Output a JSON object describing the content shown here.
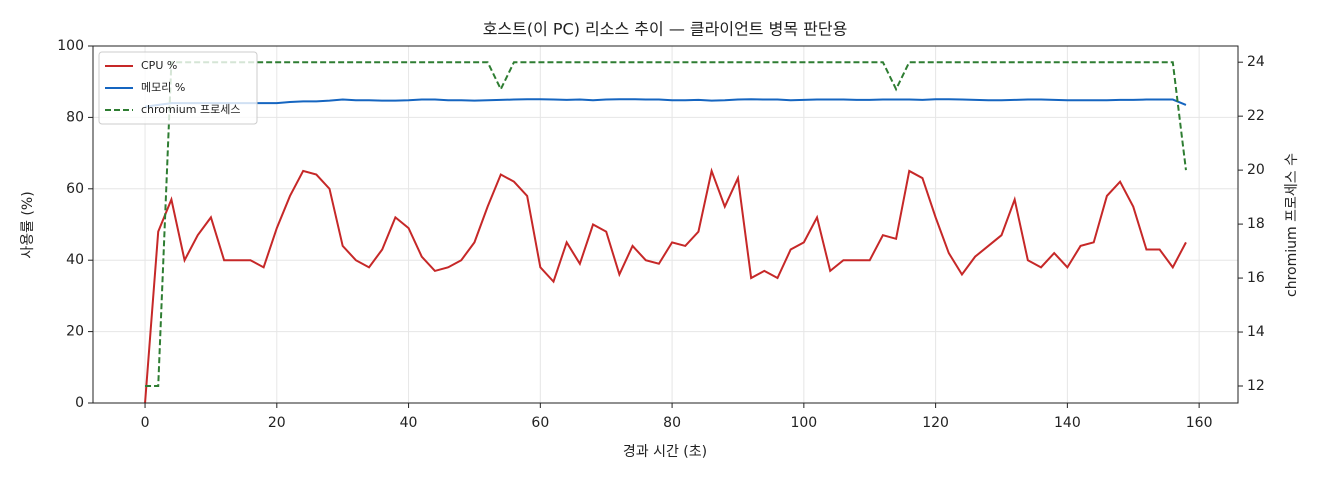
{
  "chart_data": {
    "type": "line",
    "title": "호스트(이 PC) 리소스 추이 — 클라이언트 병목 판단용",
    "x_label": "경과 시간 (초)",
    "y_label": "사용률 (%)",
    "y2_label": "chromium 프로세스 수",
    "x": [
      0,
      2,
      4,
      6,
      8,
      10,
      12,
      14,
      16,
      18,
      20,
      22,
      24,
      26,
      28,
      30,
      32,
      34,
      36,
      38,
      40,
      42,
      44,
      46,
      48,
      50,
      52,
      54,
      56,
      58,
      60,
      62,
      64,
      66,
      68,
      70,
      72,
      74,
      76,
      78,
      80,
      82,
      84,
      86,
      88,
      90,
      92,
      94,
      96,
      98,
      100,
      102,
      104,
      106,
      108,
      110,
      112,
      114,
      116,
      118,
      120,
      122,
      124,
      126,
      128,
      130,
      132,
      134,
      136,
      138,
      140,
      142,
      144,
      146,
      148,
      150,
      152,
      154,
      156,
      158
    ],
    "series": [
      {
        "name": "CPU %",
        "color": "#c62828",
        "style": "solid",
        "axis": "y",
        "values": [
          0,
          48,
          57,
          40,
          47,
          52,
          40,
          40,
          40,
          38,
          49,
          58,
          65,
          64,
          60,
          44,
          40,
          38,
          43,
          52,
          49,
          41,
          37,
          38,
          40,
          45,
          55,
          64,
          62,
          58,
          38,
          34,
          45,
          39,
          50,
          48,
          36,
          44,
          40,
          39,
          45,
          44,
          48,
          65,
          55,
          63,
          35,
          37,
          35,
          43,
          45,
          52,
          37,
          40,
          40,
          40,
          47,
          46,
          65,
          63,
          52,
          42,
          36,
          41,
          44,
          47,
          57,
          40,
          38,
          42,
          38,
          44,
          45,
          58,
          62,
          55,
          43,
          43,
          38,
          45
        ]
      },
      {
        "name": "메모리 %",
        "color": "#1565c0",
        "style": "solid",
        "axis": "y",
        "values": [
          83,
          83.5,
          84,
          84,
          84,
          84,
          84,
          84,
          84,
          84,
          84,
          84.3,
          84.5,
          84.5,
          84.7,
          85,
          84.8,
          84.8,
          84.7,
          84.7,
          84.8,
          85,
          85,
          84.8,
          84.8,
          84.7,
          84.8,
          84.9,
          85,
          85.1,
          85.1,
          85,
          84.9,
          85,
          84.8,
          85,
          85.1,
          85.1,
          85,
          85,
          84.8,
          84.8,
          84.9,
          84.7,
          84.8,
          85,
          85.1,
          85,
          85,
          84.8,
          84.9,
          85,
          85,
          85,
          84.9,
          84.9,
          85,
          85,
          85,
          84.9,
          85.1,
          85.1,
          85,
          84.9,
          84.8,
          84.8,
          84.9,
          85,
          85,
          84.9,
          84.8,
          84.8,
          84.8,
          84.8,
          84.9,
          84.9,
          85,
          85,
          85,
          83.5
        ]
      },
      {
        "name": "chromium 프로세스",
        "color": "#2e7d32",
        "style": "dashed",
        "axis": "y2",
        "values": [
          12,
          12,
          24,
          24,
          24,
          24,
          24,
          24,
          24,
          24,
          24,
          24,
          24,
          24,
          24,
          24,
          24,
          24,
          24,
          24,
          24,
          24,
          24,
          24,
          24,
          24,
          24,
          23,
          24,
          24,
          24,
          24,
          24,
          24,
          24,
          24,
          24,
          24,
          24,
          24,
          24,
          24,
          24,
          24,
          24,
          24,
          24,
          24,
          24,
          24,
          24,
          24,
          24,
          24,
          24,
          24,
          24,
          23,
          24,
          24,
          24,
          24,
          24,
          24,
          24,
          24,
          24,
          24,
          24,
          24,
          24,
          24,
          24,
          24,
          24,
          24,
          24,
          24,
          24,
          20
        ]
      }
    ],
    "xlim": [
      -7.9,
      165.9
    ],
    "xticks": [
      0,
      20,
      40,
      60,
      80,
      100,
      120,
      140,
      160
    ],
    "ylim": [
      0,
      100
    ],
    "yticks": [
      0,
      20,
      40,
      60,
      80,
      100
    ],
    "y2lim": [
      11.37,
      24.6
    ],
    "y2ticks": [
      12,
      14,
      16,
      18,
      20,
      22,
      24
    ],
    "grid": true,
    "legend": "upper left"
  }
}
